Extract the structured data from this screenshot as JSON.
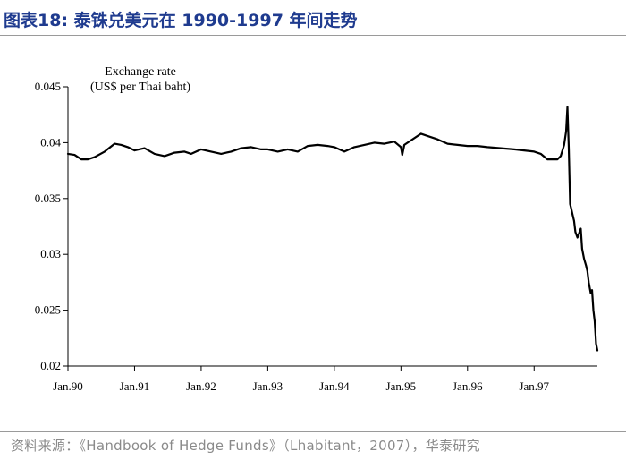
{
  "figure": {
    "title": "图表18:  泰铢兑美元在 1990-1997 年间走势",
    "source": "资料来源：《Handbook of Hedge Funds》（Lhabitant，2007），华泰研究"
  },
  "chart_data": {
    "type": "line",
    "title": "",
    "ylabel_line1": "Exchange rate",
    "ylabel_line2": "(US$ per Thai baht)",
    "xlabel": "",
    "ylim": [
      0.02,
      0.045
    ],
    "xlim": [
      1990.0,
      1997.95
    ],
    "grid": false,
    "legend": "none",
    "line_color": "#000000",
    "x_ticks": [
      {
        "value": 1990,
        "label": "Jan.90"
      },
      {
        "value": 1991,
        "label": "Jan.91"
      },
      {
        "value": 1992,
        "label": "Jan.92"
      },
      {
        "value": 1993,
        "label": "Jan.93"
      },
      {
        "value": 1994,
        "label": "Jan.94"
      },
      {
        "value": 1995,
        "label": "Jan.95"
      },
      {
        "value": 1996,
        "label": "Jan.96"
      },
      {
        "value": 1997,
        "label": "Jan.97"
      }
    ],
    "y_ticks": [
      {
        "value": 0.02,
        "label": "0.02"
      },
      {
        "value": 0.025,
        "label": "0.025"
      },
      {
        "value": 0.03,
        "label": "0.03"
      },
      {
        "value": 0.035,
        "label": "0.035"
      },
      {
        "value": 0.04,
        "label": "0.04"
      },
      {
        "value": 0.045,
        "label": "0.045"
      }
    ],
    "series": [
      {
        "x": [
          1990.0,
          1990.1,
          1990.2,
          1990.3,
          1990.4,
          1990.55,
          1990.7,
          1990.8,
          1990.9,
          1991.0,
          1991.15,
          1991.3,
          1991.45,
          1991.6,
          1991.75,
          1991.85,
          1992.0,
          1992.15,
          1992.3,
          1992.45,
          1992.6,
          1992.75,
          1992.9,
          1993.0,
          1993.15,
          1993.3,
          1993.45,
          1993.6,
          1993.75,
          1993.9,
          1994.0,
          1994.15,
          1994.3,
          1994.45,
          1994.6,
          1994.75,
          1994.9,
          1995.0,
          1995.02,
          1995.05,
          1995.15,
          1995.3,
          1995.4,
          1995.55,
          1995.7,
          1995.85,
          1996.0,
          1996.15,
          1996.3,
          1996.5,
          1996.7,
          1996.85,
          1997.0,
          1997.1,
          1997.2,
          1997.3,
          1997.35,
          1997.4,
          1997.45,
          1997.48,
          1997.5,
          1997.52,
          1997.54,
          1997.56,
          1997.58,
          1997.6,
          1997.62,
          1997.65,
          1997.7,
          1997.72,
          1997.75,
          1997.78,
          1997.8,
          1997.82,
          1997.85,
          1997.87,
          1997.89,
          1997.91,
          1997.93,
          1997.95
        ],
        "y": [
          0.039,
          0.0389,
          0.0385,
          0.0385,
          0.0387,
          0.0392,
          0.0399,
          0.0398,
          0.0396,
          0.0393,
          0.0395,
          0.039,
          0.0388,
          0.0391,
          0.0392,
          0.039,
          0.0394,
          0.0392,
          0.039,
          0.0392,
          0.0395,
          0.0396,
          0.0394,
          0.0394,
          0.0392,
          0.0394,
          0.0392,
          0.0397,
          0.0398,
          0.0397,
          0.0396,
          0.0392,
          0.0396,
          0.0398,
          0.04,
          0.0399,
          0.0401,
          0.0396,
          0.0389,
          0.0398,
          0.0402,
          0.0408,
          0.0406,
          0.0403,
          0.0399,
          0.0398,
          0.0397,
          0.0397,
          0.0396,
          0.0395,
          0.0394,
          0.0393,
          0.0392,
          0.039,
          0.0385,
          0.0385,
          0.0385,
          0.0388,
          0.0398,
          0.041,
          0.0432,
          0.0395,
          0.0345,
          0.034,
          0.0335,
          0.033,
          0.032,
          0.0315,
          0.0323,
          0.0305,
          0.0296,
          0.029,
          0.0285,
          0.0275,
          0.0265,
          0.0268,
          0.025,
          0.024,
          0.022,
          0.0214
        ]
      }
    ]
  }
}
